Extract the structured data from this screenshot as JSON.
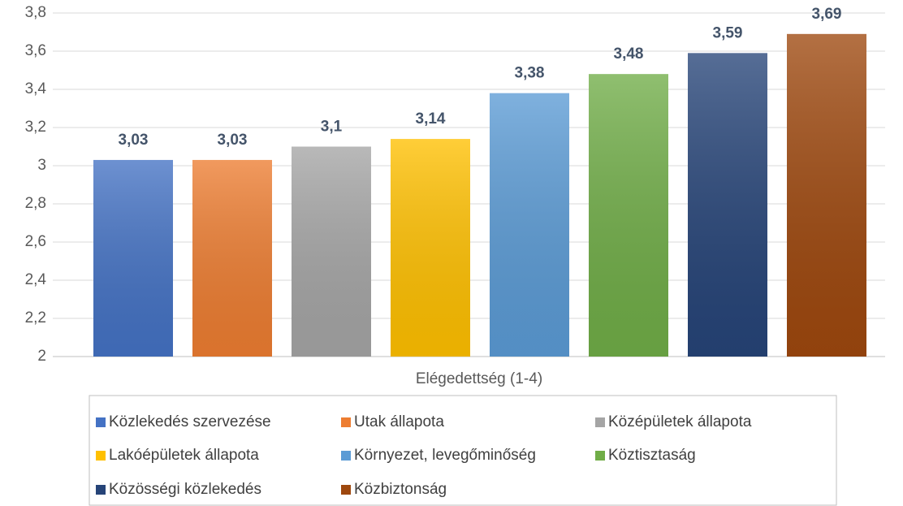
{
  "chart_data": {
    "type": "bar",
    "categories": [
      "Elégedettség (1-4)"
    ],
    "series": [
      {
        "name": "Közlekedés szervezése",
        "color": "#4472c4",
        "values": [
          3.03
        ],
        "value_labels": [
          "3,03"
        ]
      },
      {
        "name": "Utak állapota",
        "color": "#ed7d31",
        "values": [
          3.03
        ],
        "value_labels": [
          "3,03"
        ]
      },
      {
        "name": "Középületek állapota",
        "color": "#a5a5a5",
        "values": [
          3.1
        ],
        "value_labels": [
          "3,1"
        ]
      },
      {
        "name": "Lakóépületek állapota",
        "color": "#ffc000",
        "values": [
          3.14
        ],
        "value_labels": [
          "3,14"
        ]
      },
      {
        "name": "Környezet, levegőminőség",
        "color": "#5b9bd5",
        "values": [
          3.38
        ],
        "value_labels": [
          "3,38"
        ]
      },
      {
        "name": "Köztisztaság",
        "color": "#70ad47",
        "values": [
          3.48
        ],
        "value_labels": [
          "3,48"
        ]
      },
      {
        "name": "Közösségi közlekedés",
        "color": "#264478",
        "values": [
          3.59
        ],
        "value_labels": [
          "3,59"
        ]
      },
      {
        "name": "Közbiztonság",
        "color": "#9e480e",
        "values": [
          3.69
        ],
        "value_labels": [
          "3,69"
        ]
      }
    ],
    "ylim": [
      2,
      3.8
    ],
    "yticks": [
      2,
      {
        "value": 2.2,
        "label": "2,2"
      },
      {
        "value": 2.4,
        "label": "2,4"
      },
      {
        "value": 2.6,
        "label": "2,6"
      },
      {
        "value": 2.8,
        "label": "2,8"
      },
      3,
      {
        "value": 3.2,
        "label": "3,2"
      },
      {
        "value": 3.4,
        "label": "3,4"
      },
      {
        "value": 3.6,
        "label": "3,6"
      },
      {
        "value": 3.8,
        "label": "3,8"
      }
    ],
    "grid": true,
    "legend": "bottom"
  }
}
